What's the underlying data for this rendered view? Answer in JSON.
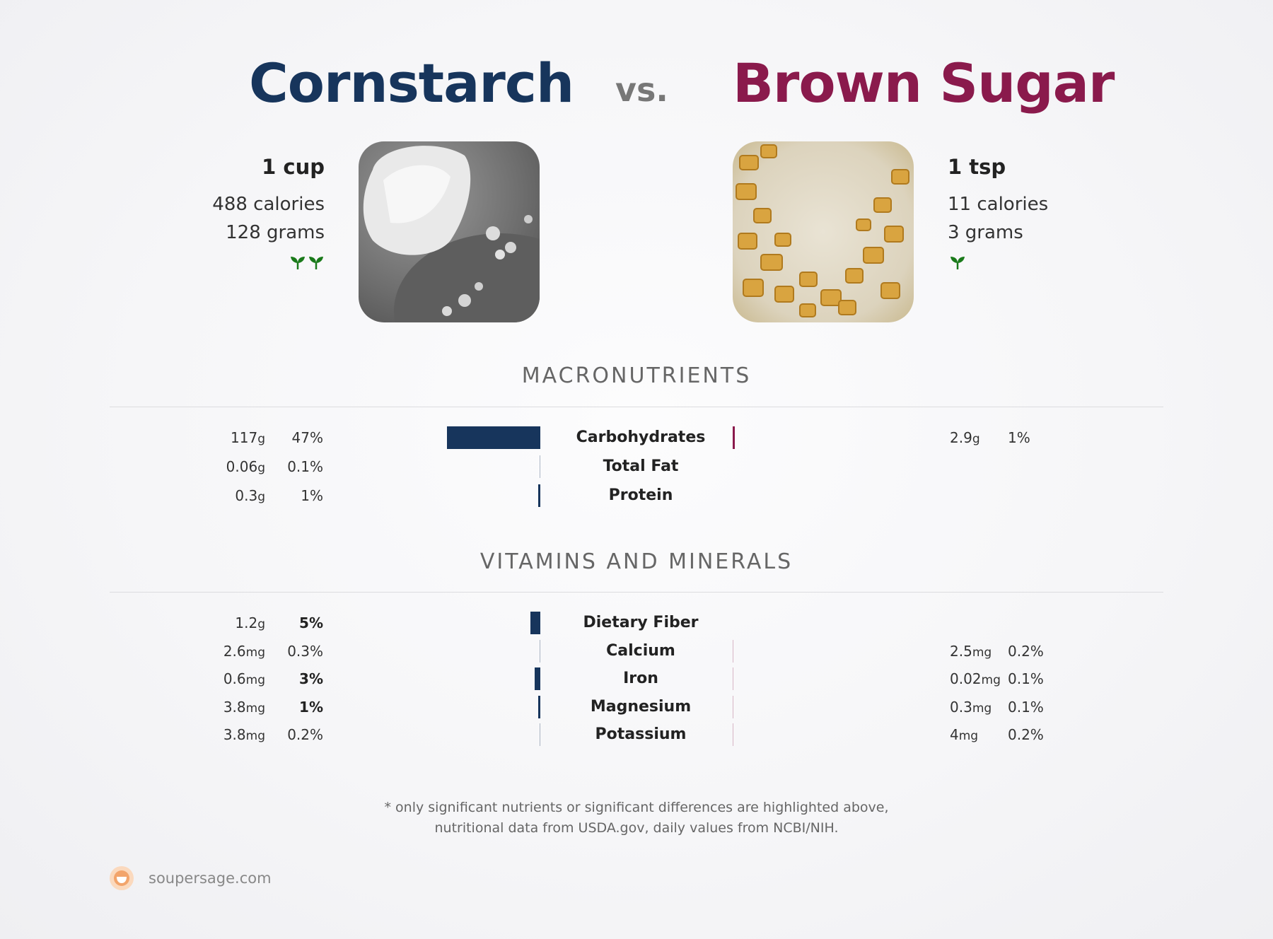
{
  "header": {
    "left_title": "Cornstarch",
    "vs": "vs.",
    "right_title": "Brown Sugar",
    "left_color": "#17355c",
    "right_color": "#8a1a4c"
  },
  "left_food": {
    "serving": "1 cup",
    "calories": "488 calories",
    "grams": "128 grams",
    "sprout_count": 2,
    "icon": "sprout-icon"
  },
  "right_food": {
    "serving": "1 tsp",
    "calories": "11 calories",
    "grams": "3 grams",
    "sprout_count": 1,
    "icon": "sprout-icon"
  },
  "macronutrients": {
    "title": "MACRONUTRIENTS",
    "rows": [
      {
        "name": "Carbohydrates",
        "left_amount": "117",
        "left_unit": "g",
        "left_pct": "47%",
        "left_bold": false,
        "left_value": 47,
        "right_amount": "2.9",
        "right_unit": "g",
        "right_pct": "1%",
        "right_bold": false,
        "right_value": 1
      },
      {
        "name": "Total Fat",
        "left_amount": "0.06",
        "left_unit": "g",
        "left_pct": "0.1%",
        "left_bold": false,
        "left_value": 0.1,
        "right_amount": "",
        "right_unit": "",
        "right_pct": "",
        "right_bold": false,
        "right_value": 0
      },
      {
        "name": "Protein",
        "left_amount": "0.3",
        "left_unit": "g",
        "left_pct": "1%",
        "left_bold": false,
        "left_value": 1,
        "right_amount": "",
        "right_unit": "",
        "right_pct": "",
        "right_bold": false,
        "right_value": 0
      }
    ]
  },
  "vitamins": {
    "title": "VITAMINS AND MINERALS",
    "rows": [
      {
        "name": "Dietary Fiber",
        "left_amount": "1.2",
        "left_unit": "g",
        "left_pct": "5%",
        "left_bold": true,
        "left_value": 5,
        "right_amount": "",
        "right_unit": "",
        "right_pct": "",
        "right_bold": false,
        "right_value": 0
      },
      {
        "name": "Calcium",
        "left_amount": "2.6",
        "left_unit": "mg",
        "left_pct": "0.3%",
        "left_bold": false,
        "left_value": 0.3,
        "right_amount": "2.5",
        "right_unit": "mg",
        "right_pct": "0.2%",
        "right_bold": false,
        "right_value": 0.2
      },
      {
        "name": "Iron",
        "left_amount": "0.6",
        "left_unit": "mg",
        "left_pct": "3%",
        "left_bold": true,
        "left_value": 3,
        "right_amount": "0.02",
        "right_unit": "mg",
        "right_pct": "0.1%",
        "right_bold": false,
        "right_value": 0.1
      },
      {
        "name": "Magnesium",
        "left_amount": "3.8",
        "left_unit": "mg",
        "left_pct": "1%",
        "left_bold": true,
        "left_value": 1,
        "right_amount": "0.3",
        "right_unit": "mg",
        "right_pct": "0.1%",
        "right_bold": false,
        "right_value": 0.1
      },
      {
        "name": "Potassium",
        "left_amount": "3.8",
        "left_unit": "mg",
        "left_pct": "0.2%",
        "left_bold": false,
        "left_value": 0.2,
        "right_amount": "4",
        "right_unit": "mg",
        "right_pct": "0.2%",
        "right_bold": false,
        "right_value": 0.2
      }
    ]
  },
  "footnote": {
    "line1": "* only significant nutrients or significant differences are highlighted above,",
    "line2": "nutritional data from USDA.gov, daily values from NCBI/NIH."
  },
  "brand": {
    "text": "soupersage.com",
    "icon": "soupersage-logo-icon",
    "accent": "#f2a46b"
  }
}
